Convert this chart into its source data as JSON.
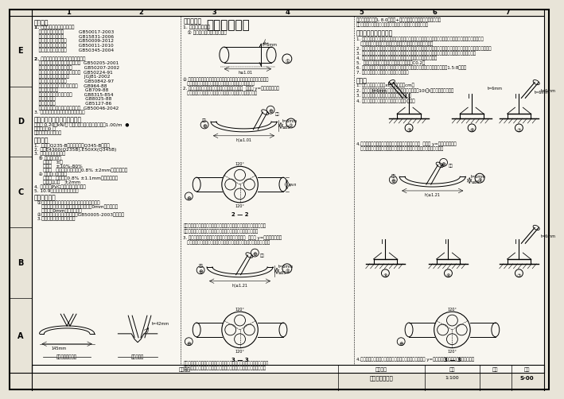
{
  "bg_color": "#e8e4d8",
  "white": "#ffffff",
  "line_color": "#000000",
  "text_color": "#000000",
  "title": "结构设计说明",
  "title_block_text": "结构设计总说明",
  "drawing_no": "S-00",
  "left_labels": [
    "E",
    "D",
    "C",
    "B",
    "A"
  ],
  "top_labels": [
    "1",
    "2",
    "3",
    "4",
    "5",
    "6",
    "7"
  ]
}
